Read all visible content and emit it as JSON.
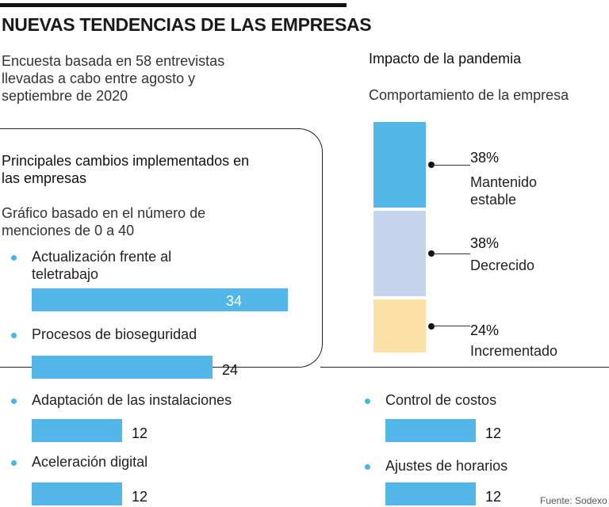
{
  "header": {
    "title": "NUEVAS TENDENCIAS DE LAS EMPRESAS",
    "subtitle": "Encuesta basada en 58 entrevistas llevadas a cabo entre agosto y septiembre de 2020"
  },
  "source": "Fuente: Sodexo",
  "chart_data": [
    {
      "type": "bar",
      "orientation": "horizontal",
      "title": "Principales cambios implementados en las empresas",
      "subtitle": "Gráfico basado en el número de menciones de 0 a 40",
      "xlim": [
        0,
        40
      ],
      "categories": [
        "Actualización frente al teletrabajo",
        "Procesos de bioseguridad",
        "Adaptación de las instalaciones",
        "Aceleración digital",
        "Control de costos",
        "Ajustes de horarios"
      ],
      "values": [
        34,
        24,
        12,
        12,
        12,
        12
      ],
      "color": "#52b6e8"
    },
    {
      "type": "bar",
      "orientation": "stacked-vertical",
      "title": "Impacto de la pandemia",
      "subtitle": "Comportamiento de la empresa",
      "categories": [
        "Mantenido estable",
        "Decrecido",
        "Incrementado"
      ],
      "values": [
        38,
        38,
        24
      ],
      "value_labels": [
        "38%",
        "38%",
        "24%"
      ],
      "colors": [
        "#52b6e8",
        "#c6d5ee",
        "#fbe1a6"
      ]
    }
  ]
}
